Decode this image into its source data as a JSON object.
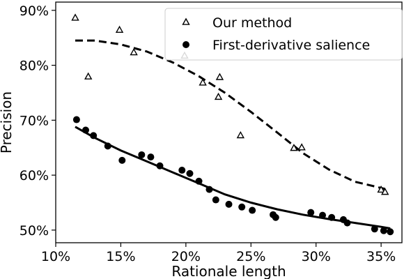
{
  "chart_data": {
    "type": "scatter",
    "xlabel": "Rationale length",
    "ylabel": "Precision",
    "xlim": [
      10,
      36.6
    ],
    "ylim": [
      47.7,
      91.5
    ],
    "xticks": [
      10,
      15,
      20,
      25,
      30,
      35
    ],
    "yticks": [
      50,
      60,
      70,
      80,
      90
    ],
    "xtick_labels": [
      "10%",
      "15%",
      "20%",
      "25%",
      "30%",
      "35%"
    ],
    "ytick_labels": [
      "50%",
      "60%",
      "70%",
      "80%",
      "90%"
    ],
    "grid": false,
    "legend_position": "top-right",
    "series": [
      {
        "name": "Our method",
        "marker": "triangle-open",
        "color": "#000000",
        "points": [
          [
            11.5,
            88.6
          ],
          [
            12.5,
            77.9
          ],
          [
            14.9,
            86.4
          ],
          [
            16.0,
            82.3
          ],
          [
            19.9,
            81.7
          ],
          [
            21.3,
            76.8
          ],
          [
            22.5,
            74.2
          ],
          [
            22.6,
            77.8
          ],
          [
            24.2,
            67.2
          ],
          [
            28.3,
            64.9
          ],
          [
            28.9,
            65.0
          ],
          [
            35.0,
            57.3
          ],
          [
            35.3,
            56.9
          ]
        ],
        "trend_line": {
          "style": "dashed",
          "points": [
            [
              11.5,
              84.5
            ],
            [
              13.0,
              84.5
            ],
            [
              15.0,
              83.8
            ],
            [
              17.0,
              82.5
            ],
            [
              19.0,
              80.5
            ],
            [
              21.0,
              78.0
            ],
            [
              23.0,
              75.0
            ],
            [
              25.0,
              71.5
            ],
            [
              27.0,
              67.8
            ],
            [
              29.0,
              64.0
            ],
            [
              31.0,
              61.0
            ],
            [
              33.0,
              58.8
            ],
            [
              35.3,
              57.5
            ]
          ]
        }
      },
      {
        "name": "First-derivative salience",
        "marker": "circle-filled",
        "color": "#000000",
        "points": [
          [
            11.6,
            70.1
          ],
          [
            12.3,
            68.2
          ],
          [
            12.9,
            67.2
          ],
          [
            14.0,
            65.3
          ],
          [
            15.1,
            62.7
          ],
          [
            16.6,
            63.7
          ],
          [
            17.3,
            63.3
          ],
          [
            18.0,
            61.7
          ],
          [
            19.7,
            60.9
          ],
          [
            20.3,
            60.3
          ],
          [
            21.0,
            58.9
          ],
          [
            21.8,
            57.4
          ],
          [
            22.3,
            55.5
          ],
          [
            23.3,
            54.7
          ],
          [
            24.3,
            54.2
          ],
          [
            25.1,
            53.6
          ],
          [
            26.7,
            52.8
          ],
          [
            26.9,
            52.3
          ],
          [
            29.6,
            53.2
          ],
          [
            30.5,
            52.7
          ],
          [
            31.2,
            52.3
          ],
          [
            32.1,
            51.9
          ],
          [
            32.4,
            51.3
          ],
          [
            34.5,
            50.2
          ],
          [
            35.2,
            49.9
          ],
          [
            35.7,
            49.7
          ]
        ],
        "trend_line": {
          "style": "solid",
          "points": [
            [
              11.5,
              68.8
            ],
            [
              13.0,
              66.8
            ],
            [
              15.0,
              64.5
            ],
            [
              17.0,
              62.5
            ],
            [
              19.0,
              60.5
            ],
            [
              21.0,
              58.5
            ],
            [
              23.0,
              56.5
            ],
            [
              25.0,
              55.0
            ],
            [
              27.0,
              53.8
            ],
            [
              29.0,
              52.8
            ],
            [
              31.0,
              52.0
            ],
            [
              33.0,
              51.3
            ],
            [
              35.0,
              50.6
            ],
            [
              35.7,
              50.3
            ]
          ]
        }
      }
    ]
  }
}
